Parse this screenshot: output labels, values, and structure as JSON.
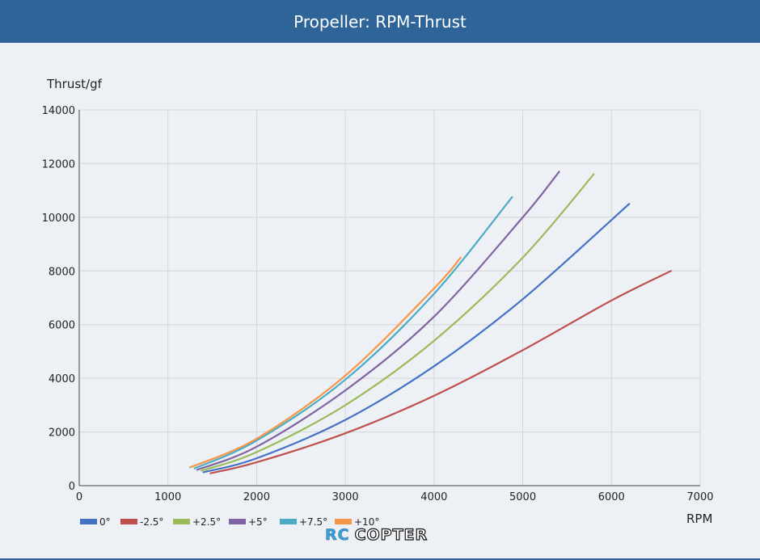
{
  "header": {
    "title": "Propeller: RPM-Thrust"
  },
  "watermark": {
    "part1": "RC",
    "part2": "COPTER"
  },
  "chart_data": {
    "type": "line",
    "title": "Propeller: RPM-Thrust",
    "ylabel": "Thrust/gf",
    "xlabel": "RPM",
    "xlim": [
      0,
      7000
    ],
    "ylim": [
      0,
      14000
    ],
    "x_ticks": [
      0,
      1000,
      2000,
      3000,
      4000,
      5000,
      6000,
      7000
    ],
    "y_ticks": [
      0,
      2000,
      4000,
      6000,
      8000,
      10000,
      12000,
      14000
    ],
    "grid": true,
    "legend_position": "bottom-left",
    "series": [
      {
        "name": "0°",
        "color": "#4472c4",
        "points": [
          [
            1400,
            500
          ],
          [
            2000,
            1020
          ],
          [
            3000,
            2450
          ],
          [
            4000,
            4450
          ],
          [
            5000,
            6950
          ],
          [
            6200,
            10500
          ]
        ]
      },
      {
        "name": "-2.5°",
        "color": "#c0504d",
        "points": [
          [
            1480,
            460
          ],
          [
            2000,
            870
          ],
          [
            3000,
            1950
          ],
          [
            4000,
            3350
          ],
          [
            5000,
            5050
          ],
          [
            6000,
            6900
          ],
          [
            6670,
            8000
          ]
        ]
      },
      {
        "name": "+2.5°",
        "color": "#9bbb59",
        "points": [
          [
            1380,
            560
          ],
          [
            2000,
            1250
          ],
          [
            3000,
            3000
          ],
          [
            4000,
            5400
          ],
          [
            5000,
            8500
          ],
          [
            5800,
            11600
          ]
        ]
      },
      {
        "name": "+5°",
        "color": "#8064a2",
        "points": [
          [
            1330,
            590
          ],
          [
            2000,
            1450
          ],
          [
            3000,
            3550
          ],
          [
            4000,
            6300
          ],
          [
            5000,
            10000
          ],
          [
            5410,
            11700
          ]
        ]
      },
      {
        "name": "+7.5°",
        "color": "#4bacc6",
        "points": [
          [
            1300,
            640
          ],
          [
            2000,
            1680
          ],
          [
            3000,
            3950
          ],
          [
            4000,
            7150
          ],
          [
            4880,
            10750
          ]
        ]
      },
      {
        "name": "+10°",
        "color": "#f79646",
        "points": [
          [
            1250,
            680
          ],
          [
            2000,
            1750
          ],
          [
            3000,
            4100
          ],
          [
            4000,
            7350
          ],
          [
            4300,
            8500
          ]
        ]
      }
    ]
  }
}
